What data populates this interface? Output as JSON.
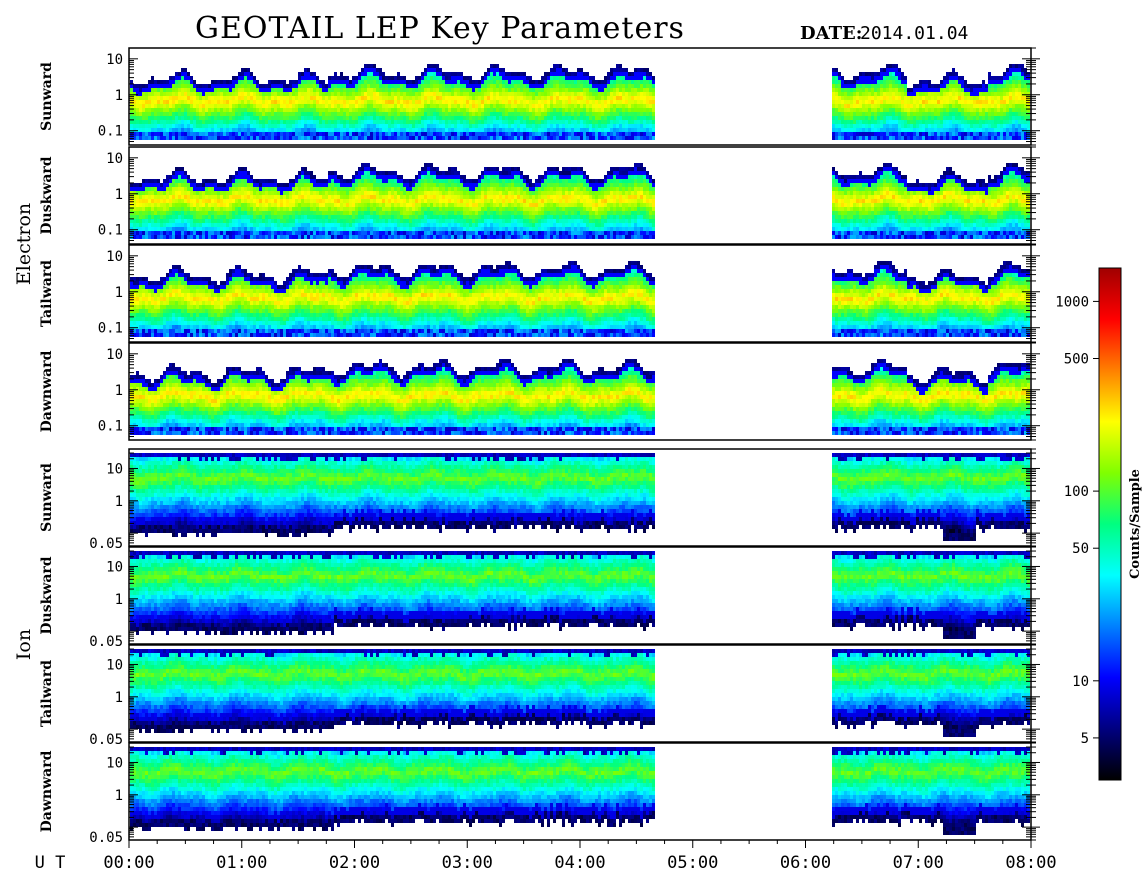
{
  "title": "GEOTAIL LEP Key Parameters",
  "date_label": "DATE:",
  "date_value": "2014.01.04",
  "chart_data": {
    "type": "heatmap",
    "x_axis_label": "U T",
    "x_ticks": [
      "00:00",
      "01:00",
      "02:00",
      "03:00",
      "04:00",
      "05:00",
      "06:00",
      "07:00",
      "08:00"
    ],
    "x_range_hours": [
      0,
      8
    ],
    "data_gap_hours": [
      4.65,
      6.22
    ],
    "scale": "log",
    "colorbar": {
      "label": "Counts/Sample",
      "ticks": [
        5,
        10,
        50,
        100,
        500,
        1000
      ],
      "range": [
        3,
        1500
      ],
      "colors": [
        "#000000",
        "#000080",
        "#0000ff",
        "#0080ff",
        "#00ffff",
        "#00ff80",
        "#80ff00",
        "#ffff00",
        "#ff8000",
        "#ff0000",
        "#a00000"
      ]
    },
    "groups": [
      {
        "name": "Electron",
        "y_ticks": [
          "10",
          "1",
          "0.1"
        ],
        "y_range": [
          0.04,
          20
        ],
        "panels": [
          {
            "direction": "Sunward"
          },
          {
            "direction": "Duskward"
          },
          {
            "direction": "Tailward"
          },
          {
            "direction": "Dawnward"
          }
        ]
      },
      {
        "name": "Ion",
        "y_ticks": [
          "10",
          "1",
          "0.05"
        ],
        "y_range": [
          0.04,
          40
        ],
        "panels": [
          {
            "direction": "Sunward"
          },
          {
            "direction": "Duskward"
          },
          {
            "direction": "Tailward"
          },
          {
            "direction": "Dawnward"
          }
        ]
      }
    ]
  }
}
